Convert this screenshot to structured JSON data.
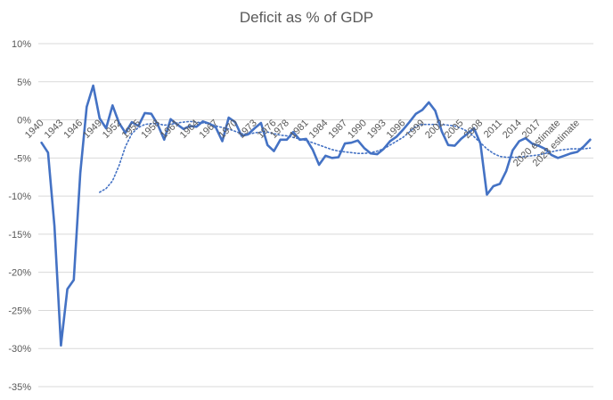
{
  "chart_data": {
    "type": "line",
    "title": "Deficit as % of GDP",
    "xlabel": "",
    "ylabel": "",
    "ylim": [
      -35,
      10
    ],
    "yticks": [
      10,
      5,
      0,
      -5,
      -10,
      -15,
      -20,
      -25,
      -30,
      -35
    ],
    "ytick_labels": [
      "10%",
      "5%",
      "0%",
      "-5%",
      "-10%",
      "-15%",
      "-20%",
      "-25%",
      "-30%",
      "-35%"
    ],
    "grid": true,
    "legend": "none",
    "categories": [
      "1940",
      "1941",
      "1942",
      "1943",
      "1944",
      "1945",
      "1946",
      "1947",
      "1948",
      "1949",
      "1950",
      "1951",
      "1952",
      "1953",
      "1954",
      "1955",
      "1956",
      "1957",
      "1958",
      "1959",
      "1960",
      "1961",
      "1962",
      "1963",
      "1964",
      "1965",
      "1966",
      "1967",
      "1968",
      "1969",
      "1970",
      "1971",
      "1972",
      "1973",
      "1974",
      "1975",
      "1976",
      "1977",
      "1978",
      "1979",
      "1980",
      "1981",
      "1982",
      "1983",
      "1984",
      "1985",
      "1986",
      "1987",
      "1988",
      "1989",
      "1990",
      "1991",
      "1992",
      "1993",
      "1994",
      "1995",
      "1996",
      "1997",
      "1998",
      "1999",
      "2000",
      "2001",
      "2002",
      "2003",
      "2004",
      "2005",
      "2006",
      "2007",
      "2008",
      "2009",
      "2010",
      "2011",
      "2012",
      "2013",
      "2014",
      "2015",
      "2016",
      "2017",
      "2018",
      "2019",
      "2020 estimate",
      "2021 estimate",
      "2022 estimate",
      "2023 estimate",
      "2024 estimate",
      "2025 estimate"
    ],
    "tick_labels": [
      "1940",
      "1943",
      "1946",
      "1949",
      "1952",
      "1955",
      "1958",
      "1961",
      "1964",
      "1967",
      "1970",
      "1973",
      "1976",
      "1978",
      "1981",
      "1984",
      "1987",
      "1990",
      "1993",
      "1996",
      "1999",
      "2002",
      "2005",
      "2008",
      "2011",
      "2014",
      "2017",
      "2020 estimate",
      "2023 estimate"
    ],
    "series": [
      {
        "values": [
          -3.0,
          -4.3,
          -13.9,
          -29.6,
          -22.2,
          -21.0,
          -7.0,
          1.7,
          4.5,
          0.2,
          -1.1,
          1.9,
          -0.4,
          -1.7,
          -0.3,
          -0.8,
          0.9,
          0.8,
          -0.6,
          -2.6,
          0.1,
          -0.6,
          -1.2,
          -0.8,
          -0.9,
          -0.2,
          -0.5,
          -1.0,
          -2.8,
          0.3,
          -0.3,
          -2.1,
          -1.9,
          -1.1,
          -0.4,
          -3.3,
          -4.1,
          -2.6,
          -2.6,
          -1.6,
          -2.6,
          -2.5,
          -3.9,
          -5.9,
          -4.7,
          -5.0,
          -4.9,
          -3.1,
          -3.0,
          -2.7,
          -3.7,
          -4.4,
          -4.5,
          -3.8,
          -2.8,
          -2.2,
          -1.3,
          -0.3,
          0.8,
          1.3,
          2.3,
          1.2,
          -1.5,
          -3.3,
          -3.4,
          -2.5,
          -1.8,
          -1.1,
          -3.1,
          -9.8,
          -8.7,
          -8.4,
          -6.7,
          -4.0,
          -2.8,
          -2.4,
          -3.1,
          -3.4,
          -3.8,
          -4.6,
          -5.0,
          -4.7,
          -4.4,
          -4.2,
          -3.5,
          -2.6
        ],
        "color": "#4472C4"
      }
    ],
    "trendline": {
      "style": "dotted",
      "color": "#4472C4",
      "values": [
        null,
        null,
        null,
        null,
        null,
        null,
        null,
        null,
        null,
        -9.5,
        -9.0,
        -8.0,
        -6.0,
        -3.5,
        -1.8,
        -1.0,
        -0.6,
        -0.5,
        -0.5,
        -0.7,
        -0.6,
        -0.4,
        -0.3,
        -0.2,
        -0.3,
        -0.4,
        -0.5,
        -0.8,
        -1.0,
        -1.2,
        -1.5,
        -1.8,
        -1.9,
        -1.7,
        -1.6,
        -1.6,
        -1.8,
        -2.0,
        -2.1,
        -2.3,
        -2.5,
        -2.7,
        -3.0,
        -3.3,
        -3.6,
        -3.9,
        -4.1,
        -4.2,
        -4.3,
        -4.4,
        -4.4,
        -4.3,
        -4.1,
        -3.8,
        -3.3,
        -2.8,
        -2.3,
        -1.6,
        -0.8,
        -0.6,
        -0.6,
        -0.6,
        -0.6,
        -0.7,
        -0.8,
        -1.1,
        -1.5,
        -2.2,
        -3.0,
        -3.8,
        -4.4,
        -4.8,
        -4.9,
        -4.9,
        -4.9,
        -4.8,
        -4.7,
        -4.6,
        -4.4,
        -4.2,
        -4.0,
        -3.9,
        -3.8,
        -3.8,
        -3.8,
        -3.7
      ]
    }
  }
}
